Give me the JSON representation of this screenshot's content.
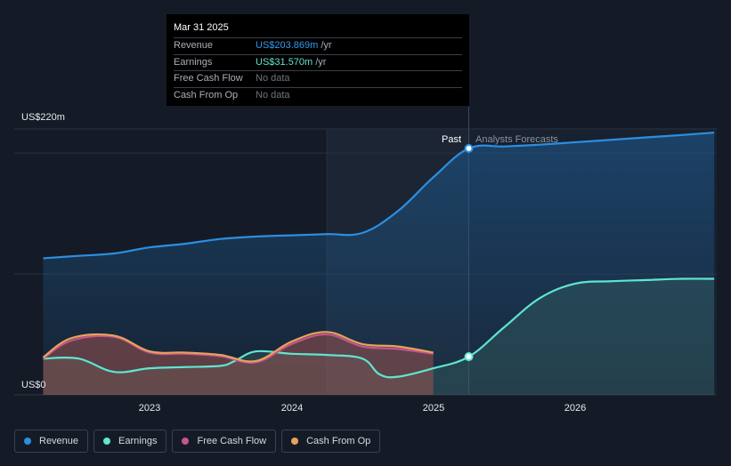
{
  "chart_data": {
    "type": "area",
    "y_axis": {
      "top_label": "US$220m",
      "bottom_label": "US$0",
      "ylim": [
        0,
        220
      ]
    },
    "x_ticks": [
      "2023",
      "2024",
      "2025",
      "2026"
    ],
    "xlim": [
      2022.25,
      2026.98
    ],
    "divider": {
      "x": 2025.25,
      "past_label": "Past",
      "forecast_label": "Analysts Forecasts"
    },
    "series": [
      {
        "name": "Revenue",
        "color": "#2d8ee0",
        "x": [
          2022.25,
          2022.5,
          2022.75,
          2023.0,
          2023.25,
          2023.5,
          2023.75,
          2024.0,
          2024.25,
          2024.5,
          2024.75,
          2025.0,
          2025.25,
          2025.5,
          2025.75,
          2026.0,
          2026.25,
          2026.5,
          2026.75,
          2026.98
        ],
        "values": [
          113,
          115,
          117,
          122,
          125,
          129,
          131,
          132,
          133,
          134,
          152,
          180,
          203.9,
          205.5,
          207,
          209,
          211,
          213,
          215,
          217
        ]
      },
      {
        "name": "Earnings",
        "color": "#5ee6cf",
        "x": [
          2022.25,
          2022.5,
          2022.75,
          2023.0,
          2023.25,
          2023.5,
          2023.6,
          2023.75,
          2024.0,
          2024.25,
          2024.5,
          2024.62,
          2024.75,
          2025.0,
          2025.25,
          2025.5,
          2025.75,
          2026.0,
          2026.25,
          2026.5,
          2026.75,
          2026.98
        ],
        "values": [
          30,
          30,
          19,
          22,
          23,
          24,
          28,
          36,
          34,
          33,
          30,
          17,
          15,
          22,
          31.6,
          56,
          80,
          92,
          94,
          95,
          96,
          96
        ]
      },
      {
        "name": "Free Cash Flow",
        "color": "#c5558a",
        "x": [
          2022.25,
          2022.45,
          2022.75,
          2023.0,
          2023.25,
          2023.5,
          2023.75,
          2024.0,
          2024.25,
          2024.5,
          2024.75,
          2025.0
        ],
        "values": [
          30,
          45,
          48,
          35,
          34,
          32,
          27,
          42,
          50,
          40,
          38,
          34
        ]
      },
      {
        "name": "Cash From Op",
        "color": "#e8a25c",
        "x": [
          2022.25,
          2022.45,
          2022.75,
          2023.0,
          2023.25,
          2023.5,
          2023.75,
          2024.0,
          2024.25,
          2024.5,
          2024.75,
          2025.0
        ],
        "values": [
          31,
          47,
          49,
          36,
          35,
          33,
          28,
          44,
          52,
          42,
          40,
          35
        ]
      }
    ]
  },
  "tooltip": {
    "date": "Mar 31 2025",
    "rows": [
      {
        "label": "Revenue",
        "value": "US$203.869m",
        "unit": "/yr"
      },
      {
        "label": "Earnings",
        "value": "US$31.570m",
        "unit": "/yr"
      },
      {
        "label": "Free Cash Flow",
        "value": "No data",
        "unit": ""
      },
      {
        "label": "Cash From Op",
        "value": "No data",
        "unit": ""
      }
    ]
  },
  "legend": [
    {
      "label": "Revenue",
      "color": "#2d8ee0"
    },
    {
      "label": "Earnings",
      "color": "#5ee6cf"
    },
    {
      "label": "Free Cash Flow",
      "color": "#c5558a"
    },
    {
      "label": "Cash From Op",
      "color": "#e8a25c"
    }
  ]
}
